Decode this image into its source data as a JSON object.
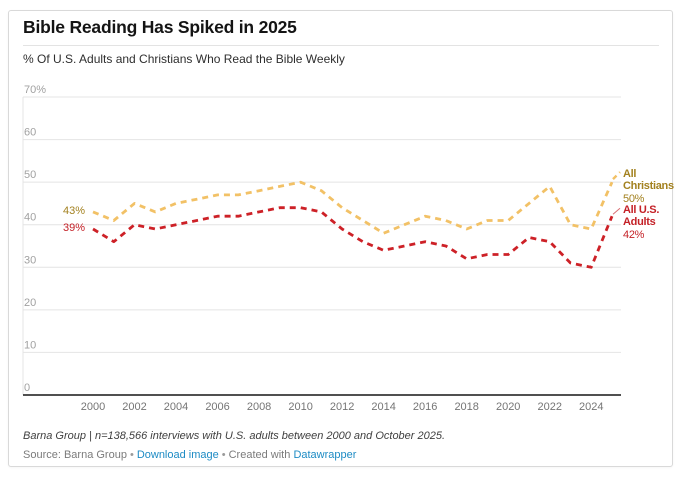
{
  "header": {
    "title": "Bible Reading Has Spiked in 2025",
    "subtitle": "% Of U.S. Adults and Christians Who Read the Bible Weekly"
  },
  "chart_data": {
    "type": "line",
    "title": "Bible Reading Has Spiked in 2025",
    "subtitle": "% Of U.S. Adults and Christians Who Read the Bible Weekly",
    "x": [
      2000,
      2001,
      2002,
      2003,
      2004,
      2005,
      2006,
      2007,
      2008,
      2009,
      2010,
      2011,
      2012,
      2013,
      2014,
      2015,
      2016,
      2017,
      2018,
      2019,
      2020,
      2021,
      2022,
      2023,
      2024,
      2025
    ],
    "series": [
      {
        "name": "All Christians",
        "values": [
          43,
          41,
          45,
          43,
          45,
          46,
          47,
          47,
          48,
          49,
          50,
          48,
          44,
          41,
          38,
          40,
          42,
          41,
          39,
          41,
          41,
          45,
          49,
          40,
          39,
          50
        ],
        "color": "#F2C166",
        "label_color": "#a3811f",
        "start_label": "43%",
        "end_label": "50%"
      },
      {
        "name": "All U.S. Adults",
        "values": [
          39,
          36,
          40,
          39,
          40,
          41,
          42,
          42,
          43,
          44,
          44,
          43,
          39,
          36,
          34,
          35,
          36,
          35,
          32,
          33,
          33,
          37,
          36,
          31,
          30,
          42
        ],
        "color": "#CD2127",
        "label_color": "#c42127",
        "start_label": "39%",
        "end_label": "42%"
      }
    ],
    "ylim": [
      0,
      70
    ],
    "y_ticks": [
      0,
      10,
      20,
      30,
      40,
      50,
      60,
      70
    ],
    "y_tick_labels": [
      "0",
      "10",
      "20",
      "30",
      "40",
      "50",
      "60",
      "70%"
    ],
    "x_tick_labels": [
      "2000",
      "2002",
      "2004",
      "2006",
      "2008",
      "2010",
      "2012",
      "2014",
      "2016",
      "2018",
      "2020",
      "2022",
      "2024"
    ],
    "grid": true,
    "line_style": "dashed",
    "legend_position": "right of line ends"
  },
  "footer": {
    "note": "Barna Group | n=138,566 interviews with U.S. adults between 2000 and October 2025.",
    "source_prefix": "Source: Barna Group",
    "separator": "•",
    "download_label": "Download image",
    "created_with_label": "Created with",
    "datawrapper_label": "Datawrapper"
  },
  "colors": {
    "christians_line": "#F2C166",
    "christians_text": "#a3811f",
    "adults_line": "#CD2127",
    "adults_text": "#c42127",
    "grid": "#e4e4e4",
    "axis_line": "#161616",
    "y_tick_text": "#a1a1a1",
    "x_tick_text": "#757575",
    "link_blue": "#1d8bc4"
  }
}
